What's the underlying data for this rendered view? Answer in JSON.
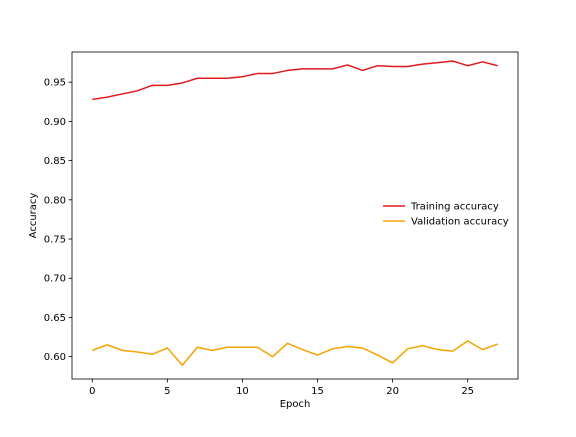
{
  "chart_data": {
    "type": "line",
    "xlabel": "Epoch",
    "ylabel": "Accuracy",
    "xlim": [
      -1.35,
      28.35
    ],
    "ylim": [
      0.5715,
      0.9885
    ],
    "x_ticks": [
      0,
      5,
      10,
      15,
      20,
      25
    ],
    "y_ticks": [
      0.6,
      0.65,
      0.7,
      0.75,
      0.8,
      0.85,
      0.9,
      0.95
    ],
    "y_tick_labels": [
      "0.60",
      "0.65",
      "0.70",
      "0.75",
      "0.80",
      "0.85",
      "0.90",
      "0.95"
    ],
    "grid": false,
    "legend_position": "center-right",
    "x": [
      0,
      1,
      2,
      3,
      4,
      5,
      6,
      7,
      8,
      9,
      10,
      11,
      12,
      13,
      14,
      15,
      16,
      17,
      18,
      19,
      20,
      21,
      22,
      23,
      24,
      25,
      26,
      27
    ],
    "series": [
      {
        "name": "Training accuracy",
        "color": "#e3191c",
        "values": [
          0.928,
          0.931,
          0.935,
          0.939,
          0.946,
          0.946,
          0.949,
          0.955,
          0.955,
          0.955,
          0.957,
          0.961,
          0.961,
          0.965,
          0.967,
          0.967,
          0.967,
          0.972,
          0.965,
          0.971,
          0.97,
          0.97,
          0.973,
          0.975,
          0.977,
          0.971,
          0.976,
          0.971
        ]
      },
      {
        "name": "Validation accuracy",
        "color": "#f5a300",
        "values": [
          0.608,
          0.615,
          0.608,
          0.606,
          0.603,
          0.611,
          0.589,
          0.612,
          0.608,
          0.612,
          0.612,
          0.612,
          0.6,
          0.617,
          0.609,
          0.602,
          0.61,
          0.613,
          0.611,
          0.602,
          0.592,
          0.61,
          0.614,
          0.609,
          0.607,
          0.62,
          0.609,
          0.616
        ]
      }
    ]
  }
}
